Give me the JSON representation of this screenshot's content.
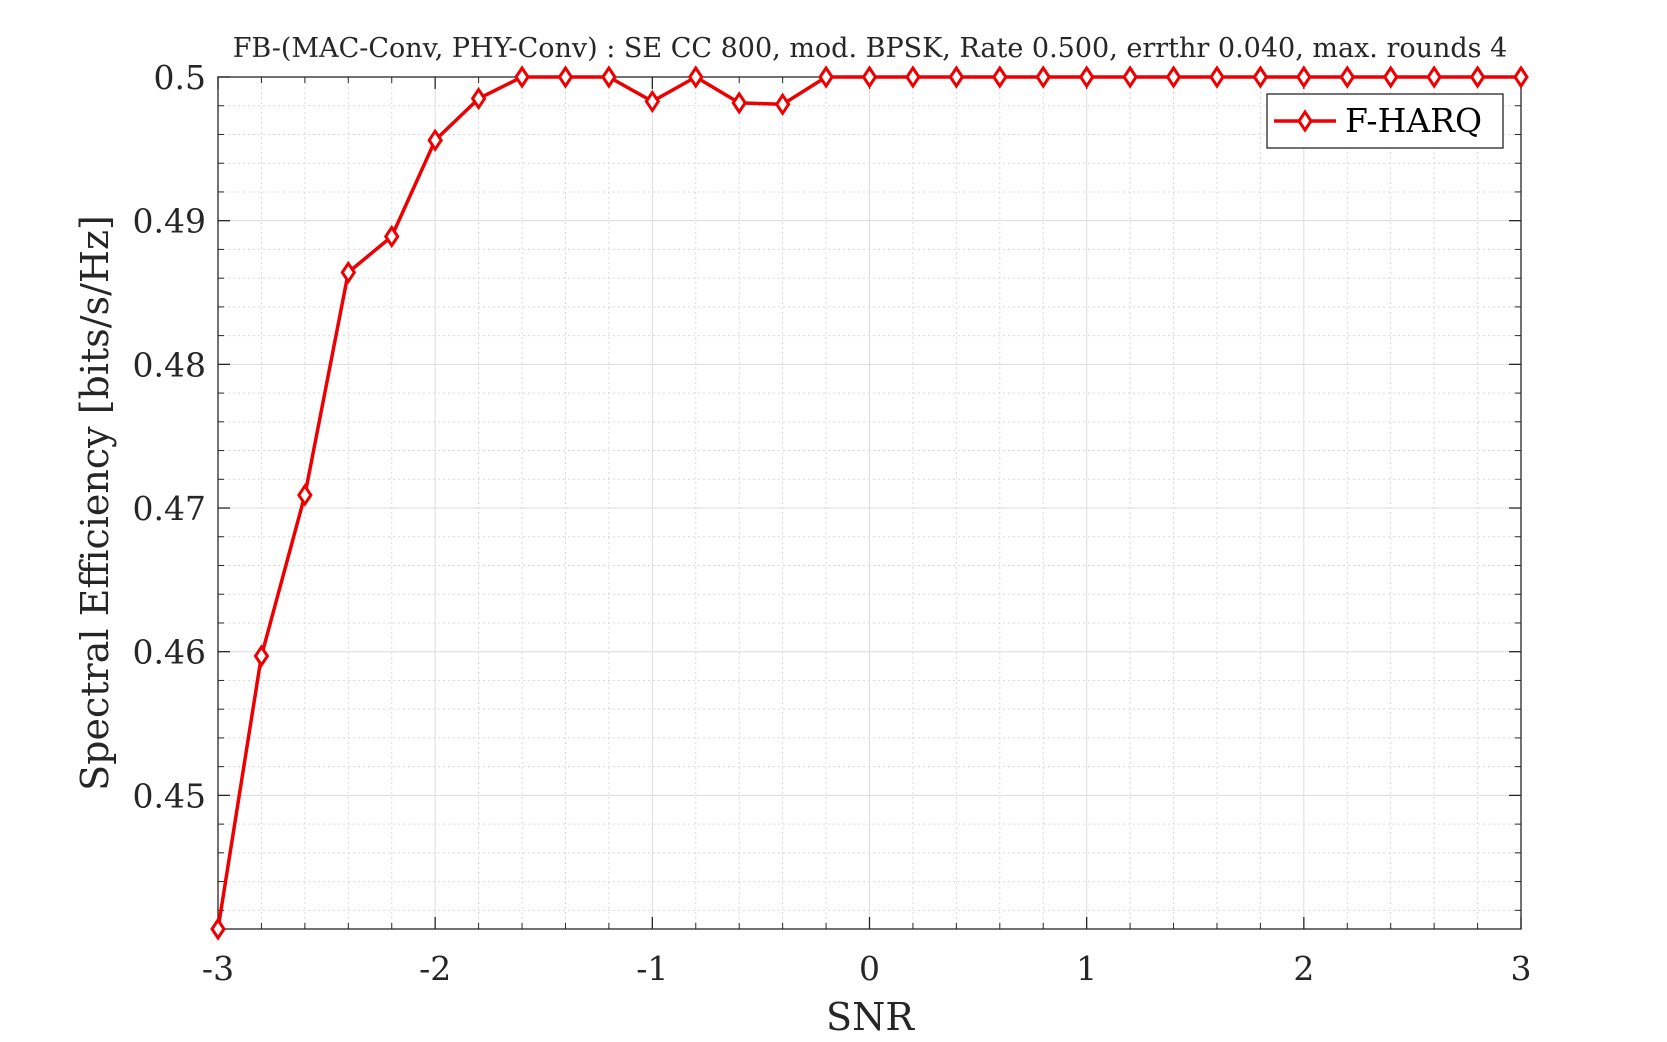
{
  "chart_data": {
    "type": "line",
    "title": "FB-(MAC-Conv, PHY-Conv) : SE CC 800, mod. BPSK, Rate 0.500, errthr 0.040, max. rounds 4",
    "xlabel": "SNR",
    "ylabel": "Spectral Efficiency [bits/s/Hz]",
    "xlim": [
      -3,
      3
    ],
    "ylim": [
      0.4407,
      0.5
    ],
    "xticks": [
      -3,
      -2,
      -1,
      0,
      1,
      2,
      3
    ],
    "xtick_labels": [
      "-3",
      "-2",
      "-1",
      "0",
      "1",
      "2",
      "3"
    ],
    "yticks": [
      0.45,
      0.46,
      0.47,
      0.48,
      0.49,
      0.5
    ],
    "ytick_labels": [
      "0.45",
      "0.46",
      "0.47",
      "0.48",
      "0.49",
      "0.5"
    ],
    "grid": true,
    "minor_grid": true,
    "legend_position": "top-right",
    "series": [
      {
        "name": "F-HARQ",
        "color": "#ee0000",
        "marker": "diamond",
        "x": [
          -3.0,
          -2.8,
          -2.6,
          -2.4,
          -2.2,
          -2.0,
          -1.8,
          -1.6,
          -1.4,
          -1.2,
          -1.0,
          -0.8,
          -0.6,
          -0.4,
          -0.2,
          0.0,
          0.2,
          0.4,
          0.6,
          0.8,
          1.0,
          1.2,
          1.4,
          1.6,
          1.8,
          2.0,
          2.2,
          2.4,
          2.6,
          2.8,
          3.0
        ],
        "y": [
          0.4407,
          0.4597,
          0.4709,
          0.4864,
          0.4889,
          0.4956,
          0.4985,
          0.5,
          0.5,
          0.5,
          0.4983,
          0.5,
          0.4982,
          0.4981,
          0.5,
          0.5,
          0.5,
          0.5,
          0.5,
          0.5,
          0.5,
          0.5,
          0.5,
          0.5,
          0.5,
          0.5,
          0.5,
          0.5,
          0.5,
          0.5,
          0.5
        ]
      }
    ]
  }
}
